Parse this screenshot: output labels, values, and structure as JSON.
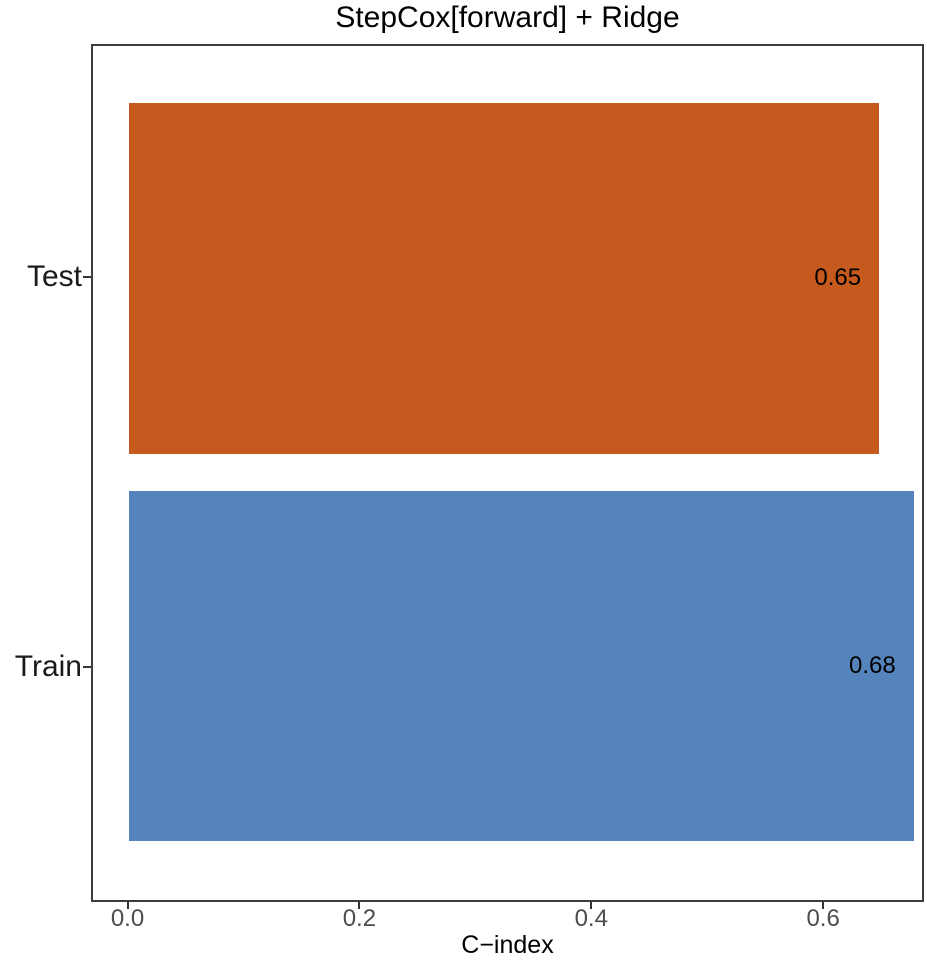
{
  "chart_data": {
    "type": "bar",
    "orientation": "horizontal",
    "title": "StepCox[forward] + Ridge",
    "xlabel": "C−index",
    "categories": [
      "Test",
      "Train"
    ],
    "values": [
      0.65,
      0.68
    ],
    "value_labels": [
      "0.65",
      "0.68"
    ],
    "bar_colors": [
      "#c65a1e",
      "#5583bc"
    ],
    "x_ticks": [
      0,
      0.2,
      0.4,
      0.6
    ],
    "x_tick_labels": [
      "0.0",
      "0.2",
      "0.4",
      "0.6"
    ],
    "xlim": [
      -0.0315,
      0.687
    ],
    "ylim_categories": "discrete",
    "grid": false,
    "legend": false,
    "panel_border_color": "#3d3d3d",
    "tick_color": "#333333",
    "x_tick_label_color": "#4d4d4d",
    "y_label_color": "#1a1a1a",
    "title_color": "#000000",
    "background_color": "#ffffff"
  }
}
